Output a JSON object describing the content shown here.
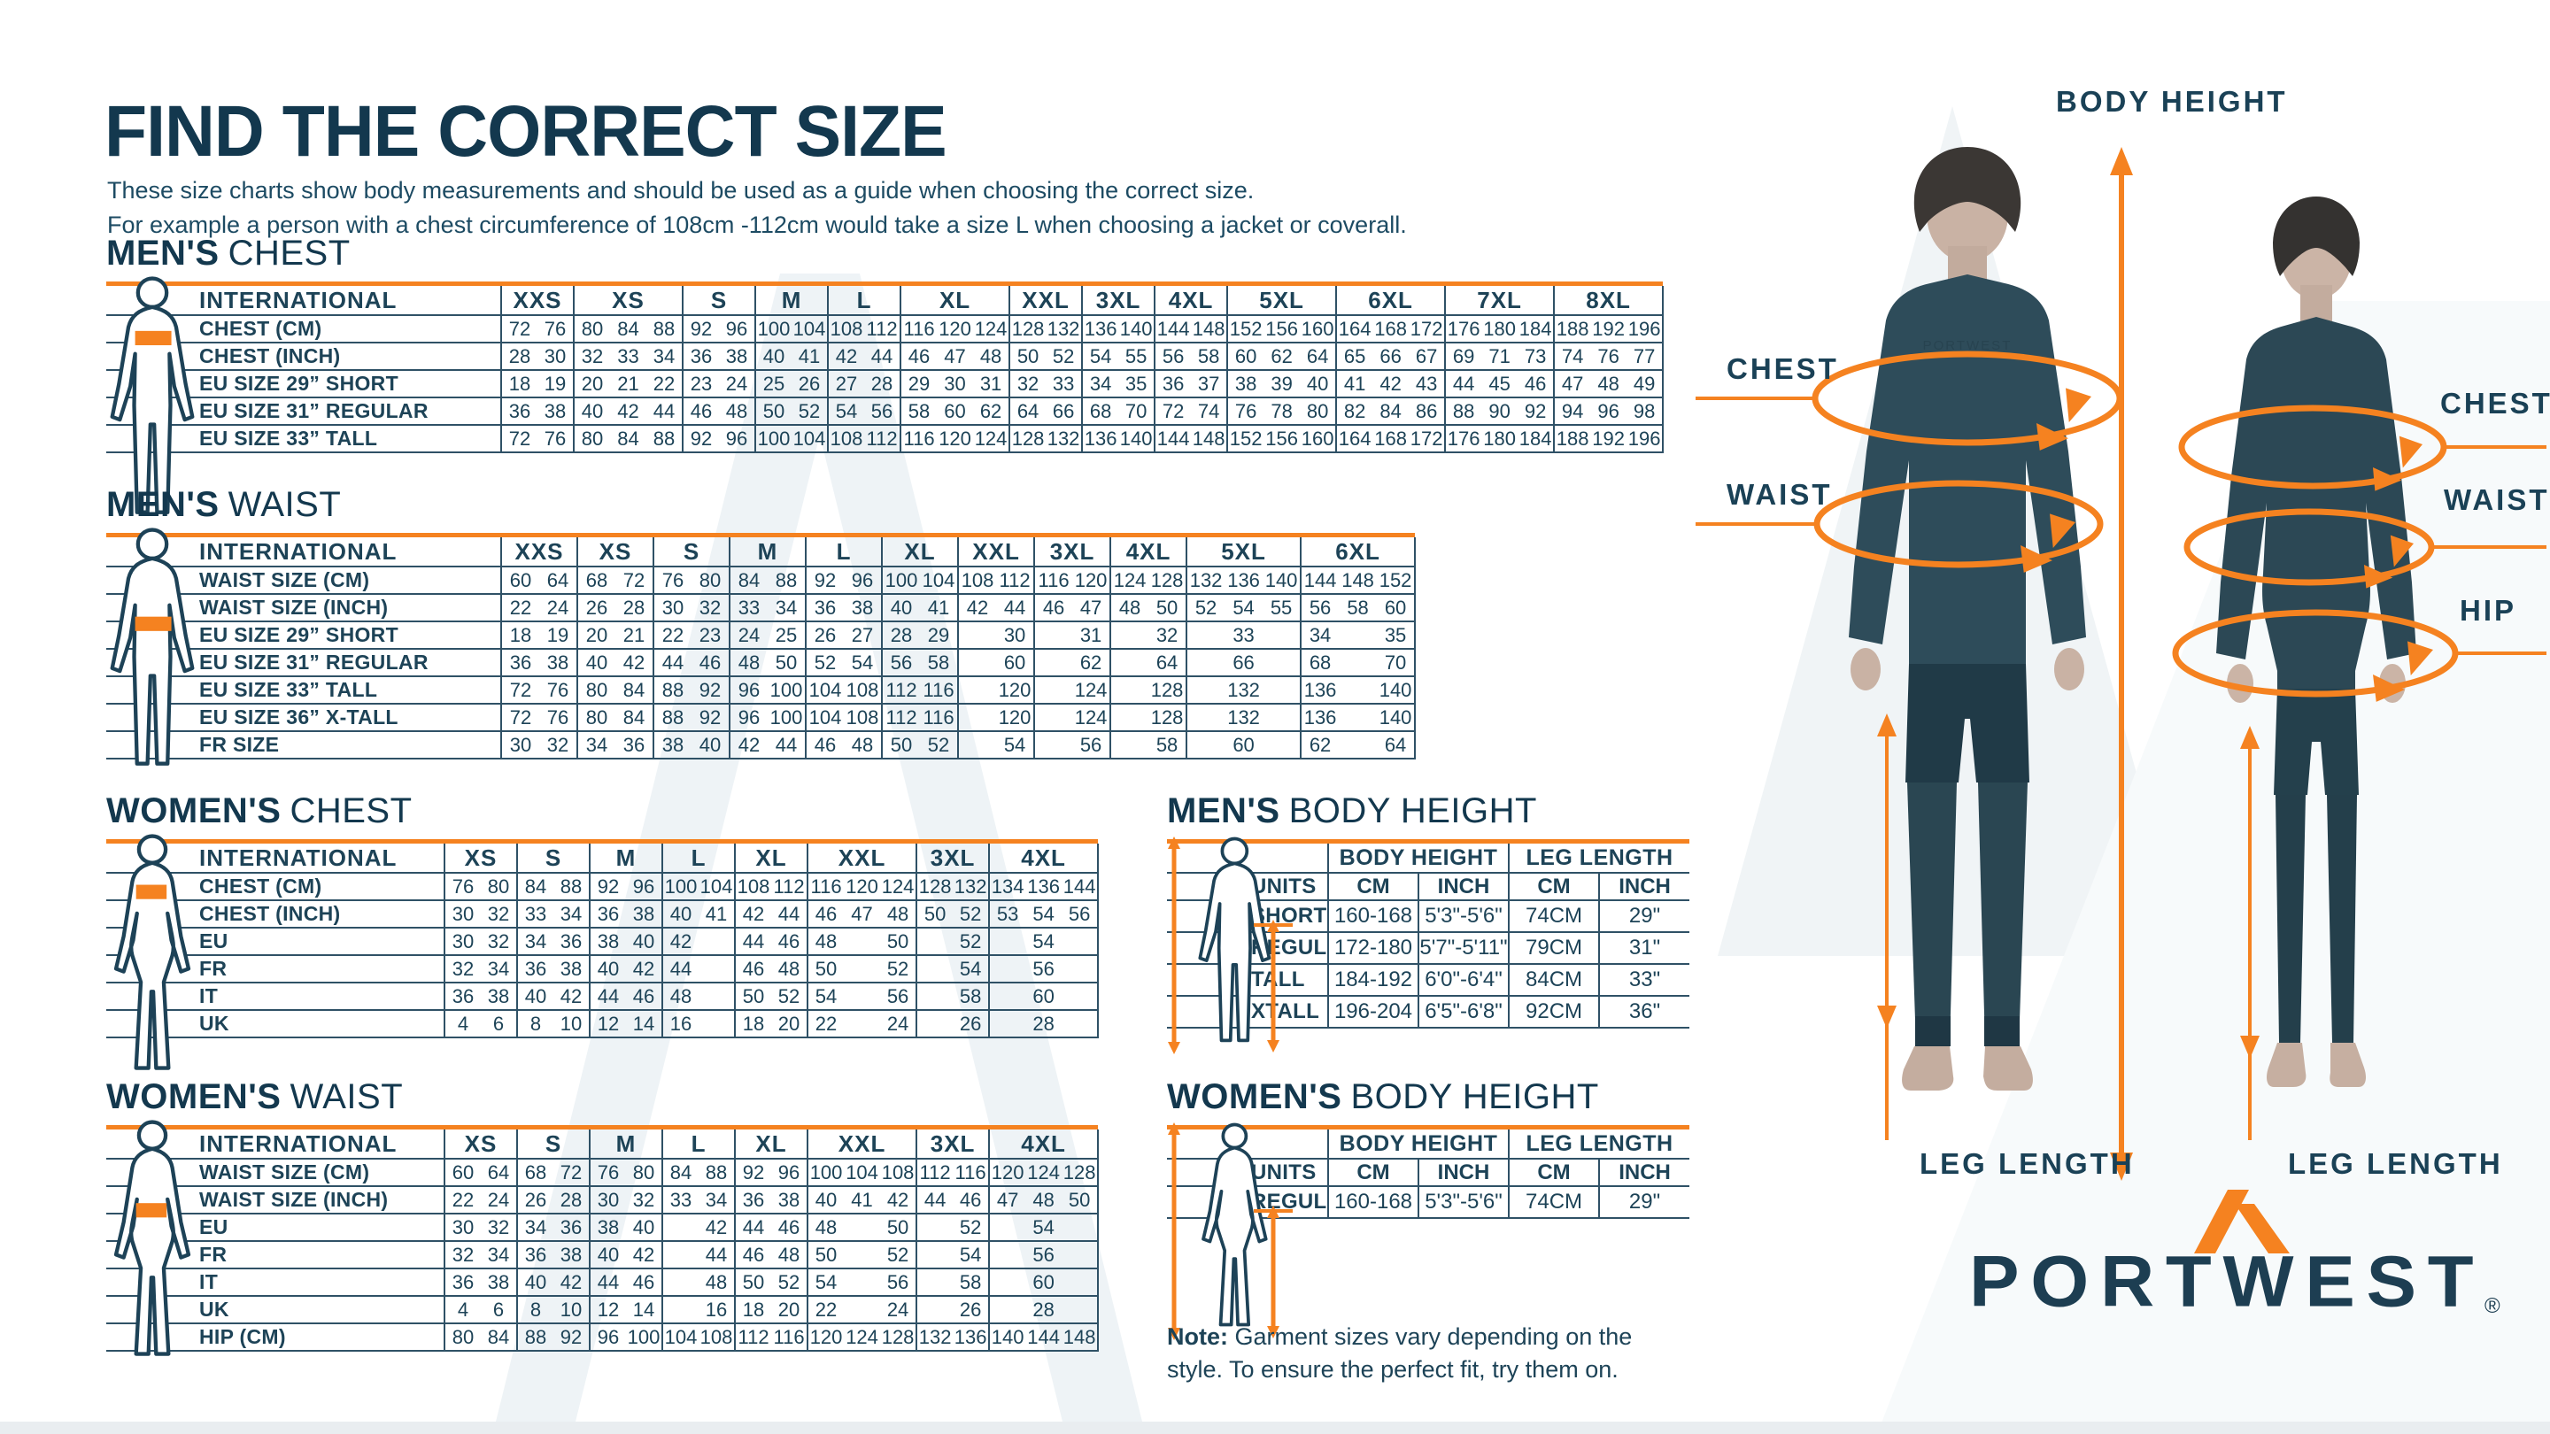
{
  "page": {
    "title": "FIND THE CORRECT SIZE",
    "subtitle1": "These size charts show body measurements and should be used as a guide when choosing the correct size.",
    "subtitle2": "For example a person with a chest circumference of 108cm -112cm would take a size L when choosing a jacket or coverall.",
    "note_bold": "Note:",
    "note_text": " Garment sizes vary depending on the style. To ensure the perfect fit, try them on.",
    "brand": "PORTWEST",
    "registered": "®"
  },
  "colors": {
    "navy": "#13384e",
    "orange": "#F58220",
    "table_line": "#2f5166",
    "skin": "#c9b2a4",
    "garment_dark": "#2e4c5a"
  },
  "size_tables": [
    {
      "id": "t-mens-chest",
      "title_bold": "MEN'S",
      "title_light": "CHEST",
      "figure": "male",
      "band": "chest",
      "label_header": "INTERNATIONAL",
      "groups": [
        [
          "XXS",
          2
        ],
        [
          "XS",
          3
        ],
        [
          "S",
          2
        ],
        [
          "M",
          2
        ],
        [
          "L",
          2
        ],
        [
          "XL",
          3
        ],
        [
          "XXL",
          2
        ],
        [
          "3XL",
          2
        ],
        [
          "4XL",
          2
        ],
        [
          "5XL",
          3
        ],
        [
          "6XL",
          3
        ],
        [
          "7XL",
          3
        ],
        [
          "8XL",
          3
        ]
      ],
      "rows": [
        [
          "CHEST (CM)",
          [
            "72",
            "76",
            "80",
            "84",
            "88",
            "92",
            "96",
            "100",
            "104",
            "108",
            "112",
            "116",
            "120",
            "124",
            "128",
            "132",
            "136",
            "140",
            "144",
            "148",
            "152",
            "156",
            "160",
            "164",
            "168",
            "172",
            "176",
            "180",
            "184",
            "188",
            "192",
            "196"
          ]
        ],
        [
          "CHEST (INCH)",
          [
            "28",
            "30",
            "32",
            "33",
            "34",
            "36",
            "38",
            "40",
            "41",
            "42",
            "44",
            "46",
            "47",
            "48",
            "50",
            "52",
            "54",
            "55",
            "56",
            "58",
            "60",
            "62",
            "64",
            "65",
            "66",
            "67",
            "69",
            "71",
            "73",
            "74",
            "76",
            "77"
          ]
        ],
        [
          "EU SIZE 29” SHORT",
          [
            "18",
            "19",
            "20",
            "21",
            "22",
            "23",
            "24",
            "25",
            "26",
            "27",
            "28",
            "29",
            "30",
            "31",
            "32",
            "33",
            "34",
            "35",
            "36",
            "37",
            "38",
            "39",
            "40",
            "41",
            "42",
            "43",
            "44",
            "45",
            "46",
            "47",
            "48",
            "49"
          ]
        ],
        [
          "EU SIZE 31” REGULAR",
          [
            "36",
            "38",
            "40",
            "42",
            "44",
            "46",
            "48",
            "50",
            "52",
            "54",
            "56",
            "58",
            "60",
            "62",
            "64",
            "66",
            "68",
            "70",
            "72",
            "74",
            "76",
            "78",
            "80",
            "82",
            "84",
            "86",
            "88",
            "90",
            "92",
            "94",
            "96",
            "98"
          ]
        ],
        [
          "EU SIZE 33” TALL",
          [
            "72",
            "76",
            "80",
            "84",
            "88",
            "92",
            "96",
            "100",
            "104",
            "108",
            "112",
            "116",
            "120",
            "124",
            "128",
            "132",
            "136",
            "140",
            "144",
            "148",
            "152",
            "156",
            "160",
            "164",
            "168",
            "172",
            "176",
            "180",
            "184",
            "188",
            "192",
            "196"
          ]
        ]
      ]
    },
    {
      "id": "t-mens-waist",
      "title_bold": "MEN'S",
      "title_light": "WAIST",
      "figure": "male",
      "band": "waist",
      "label_header": "INTERNATIONAL",
      "groups": [
        [
          "XXS",
          2
        ],
        [
          "XS",
          2
        ],
        [
          "S",
          2
        ],
        [
          "M",
          2
        ],
        [
          "L",
          2
        ],
        [
          "XL",
          2
        ],
        [
          "XXL",
          2
        ],
        [
          "3XL",
          2
        ],
        [
          "4XL",
          2
        ],
        [
          "5XL",
          3
        ],
        [
          "6XL",
          3
        ]
      ],
      "rows": [
        [
          "WAIST SIZE (CM)",
          [
            "60",
            "64",
            "68",
            "72",
            "76",
            "80",
            "84",
            "88",
            "92",
            "96",
            "100",
            "104",
            "108",
            "112",
            "116",
            "120",
            "124",
            "128",
            "132",
            "136",
            "140",
            "144",
            "148",
            "152"
          ]
        ],
        [
          "WAIST SIZE (INCH)",
          [
            "22",
            "24",
            "26",
            "28",
            "30",
            "32",
            "33",
            "34",
            "36",
            "38",
            "40",
            "41",
            "42",
            "44",
            "46",
            "47",
            "48",
            "50",
            "52",
            "54",
            "55",
            "56",
            "58",
            "60"
          ]
        ],
        [
          "EU SIZE 29” SHORT",
          [
            "18",
            "19",
            "20",
            "21",
            "22",
            "23",
            "24",
            "25",
            "26",
            "27",
            "28",
            "29",
            "",
            "30",
            "",
            "31",
            "",
            "32",
            "",
            "33",
            "",
            "34",
            "",
            "35"
          ]
        ],
        [
          "EU SIZE 31” REGULAR",
          [
            "36",
            "38",
            "40",
            "42",
            "44",
            "46",
            "48",
            "50",
            "52",
            "54",
            "56",
            "58",
            "",
            "60",
            "",
            "62",
            "",
            "64",
            "",
            "66",
            "",
            "68",
            "",
            "70"
          ]
        ],
        [
          "EU SIZE 33” TALL",
          [
            "72",
            "76",
            "80",
            "84",
            "88",
            "92",
            "96",
            "100",
            "104",
            "108",
            "112",
            "116",
            "",
            "120",
            "",
            "124",
            "",
            "128",
            "",
            "132",
            "",
            "136",
            "",
            "140"
          ]
        ],
        [
          "EU SIZE 36” X-TALL",
          [
            "72",
            "76",
            "80",
            "84",
            "88",
            "92",
            "96",
            "100",
            "104",
            "108",
            "112",
            "116",
            "",
            "120",
            "",
            "124",
            "",
            "128",
            "",
            "132",
            "",
            "136",
            "",
            "140"
          ]
        ],
        [
          "FR SIZE",
          [
            "30",
            "32",
            "34",
            "36",
            "38",
            "40",
            "42",
            "44",
            "46",
            "48",
            "50",
            "52",
            "",
            "54",
            "",
            "56",
            "",
            "58",
            "",
            "60",
            "",
            "62",
            "",
            "64"
          ]
        ]
      ]
    },
    {
      "id": "t-womens-chest",
      "title_bold": "WOMEN'S",
      "title_light": "CHEST",
      "figure": "female",
      "band": "chest",
      "label_header": "INTERNATIONAL",
      "groups": [
        [
          "XS",
          2
        ],
        [
          "S",
          2
        ],
        [
          "M",
          2
        ],
        [
          "L",
          2
        ],
        [
          "XL",
          2
        ],
        [
          "XXL",
          3
        ],
        [
          "3XL",
          2
        ],
        [
          "4XL",
          3
        ]
      ],
      "rows": [
        [
          "CHEST (CM)",
          [
            "76",
            "80",
            "84",
            "88",
            "92",
            "96",
            "100",
            "104",
            "108",
            "112",
            "116",
            "120",
            "124",
            "128",
            "132",
            "134",
            "136",
            "144"
          ]
        ],
        [
          "CHEST (INCH)",
          [
            "30",
            "32",
            "33",
            "34",
            "36",
            "38",
            "40",
            "41",
            "42",
            "44",
            "46",
            "47",
            "48",
            "50",
            "52",
            "53",
            "54",
            "56"
          ]
        ],
        [
          "EU",
          [
            "30",
            "32",
            "34",
            "36",
            "38",
            "40",
            "42",
            "",
            "44",
            "46",
            "48",
            "",
            "50",
            "",
            "52",
            [
              "54",
              3
            ]
          ]
        ],
        [
          "FR",
          [
            "32",
            "34",
            "36",
            "38",
            "40",
            "42",
            "44",
            "",
            "46",
            "48",
            "50",
            "",
            "52",
            "",
            "54",
            [
              "56",
              3
            ]
          ]
        ],
        [
          "IT",
          [
            "36",
            "38",
            "40",
            "42",
            "44",
            "46",
            "48",
            "",
            "50",
            "52",
            "54",
            "",
            "56",
            "",
            "58",
            [
              "60",
              3
            ]
          ]
        ],
        [
          "UK",
          [
            "4",
            "6",
            "8",
            "10",
            "12",
            "14",
            "16",
            "",
            "18",
            "20",
            "22",
            "",
            "24",
            "",
            "26",
            [
              "28",
              3
            ]
          ]
        ]
      ]
    },
    {
      "id": "t-womens-waist",
      "title_bold": "WOMEN'S",
      "title_light": "WAIST",
      "figure": "female",
      "band": "waist",
      "label_header": "INTERNATIONAL",
      "groups": [
        [
          "XS",
          2
        ],
        [
          "S",
          2
        ],
        [
          "M",
          2
        ],
        [
          "L",
          2
        ],
        [
          "XL",
          2
        ],
        [
          "XXL",
          3
        ],
        [
          "3XL",
          2
        ],
        [
          "4XL",
          3
        ]
      ],
      "rows": [
        [
          "WAIST SIZE (CM)",
          [
            "60",
            "64",
            "68",
            "72",
            "76",
            "80",
            "84",
            "88",
            "92",
            "96",
            "100",
            "104",
            "108",
            "112",
            "116",
            "120",
            "124",
            "128"
          ]
        ],
        [
          "WAIST SIZE (INCH)",
          [
            "22",
            "24",
            "26",
            "28",
            "30",
            "32",
            "33",
            "34",
            "36",
            "38",
            "40",
            "41",
            "42",
            "44",
            "46",
            "47",
            "48",
            "50"
          ]
        ],
        [
          "EU",
          [
            "30",
            "32",
            "34",
            "36",
            "38",
            "40",
            "",
            "42",
            "44",
            "46",
            "48",
            "",
            "50",
            "",
            "52",
            [
              "54",
              3
            ]
          ]
        ],
        [
          "FR",
          [
            "32",
            "34",
            "36",
            "38",
            "40",
            "42",
            "",
            "44",
            "46",
            "48",
            "50",
            "",
            "52",
            "",
            "54",
            [
              "56",
              3
            ]
          ]
        ],
        [
          "IT",
          [
            "36",
            "38",
            "40",
            "42",
            "44",
            "46",
            "",
            "48",
            "50",
            "52",
            "54",
            "",
            "56",
            "",
            "58",
            [
              "60",
              3
            ]
          ]
        ],
        [
          "UK",
          [
            "4",
            "6",
            "8",
            "10",
            "12",
            "14",
            "",
            "16",
            "18",
            "20",
            "22",
            "",
            "24",
            "",
            "26",
            [
              "28",
              3
            ]
          ]
        ],
        [
          "HIP (CM)",
          [
            "80",
            "84",
            "88",
            "92",
            "96",
            "100",
            "104",
            "108",
            "112",
            "116",
            "120",
            "124",
            "128",
            "132",
            "136",
            "140",
            "144",
            "148"
          ]
        ]
      ]
    }
  ],
  "height_tables": [
    {
      "id": "t-mens-bh",
      "title_bold": "MEN'S",
      "title_light": "BODY HEIGHT",
      "figure": "male",
      "col_groups": [
        [
          "BODY HEIGHT",
          2
        ],
        [
          "LEG LENGTH",
          2
        ]
      ],
      "units_label": "UNITS",
      "unit_cols": [
        "CM",
        "INCH",
        "CM",
        "INCH"
      ],
      "rows": [
        [
          "SHORT",
          [
            "160-168",
            "5'3\"-5'6\"",
            "74CM",
            "29\""
          ]
        ],
        [
          "REGULAR",
          [
            "172-180",
            "5'7\"-5'11\"",
            "79CM",
            "31\""
          ]
        ],
        [
          "TALL",
          [
            "184-192",
            "6'0\"-6'4\"",
            "84CM",
            "33\""
          ]
        ],
        [
          "XTALL",
          [
            "196-204",
            "6'5\"-6'8\"",
            "92CM",
            "36\""
          ]
        ]
      ]
    },
    {
      "id": "t-womens-bh",
      "title_bold": "WOMEN'S",
      "title_light": "BODY HEIGHT",
      "figure": "female",
      "col_groups": [
        [
          "BODY HEIGHT",
          2
        ],
        [
          "LEG LENGTH",
          2
        ]
      ],
      "units_label": "UNITS",
      "unit_cols": [
        "CM",
        "INCH",
        "CM",
        "INCH"
      ],
      "rows": [
        [
          "REGULAR",
          [
            "160-168",
            "5'3\"-5'6\"",
            "74CM",
            "29\""
          ]
        ]
      ]
    }
  ],
  "annotations": {
    "labels": [
      {
        "id": "body-height",
        "text": "BODY HEIGHT"
      },
      {
        "id": "chest-left",
        "text": "CHEST"
      },
      {
        "id": "waist-left",
        "text": "WAIST"
      },
      {
        "id": "chest-right",
        "text": "CHEST"
      },
      {
        "id": "waist-right",
        "text": "WAIST"
      },
      {
        "id": "hip-right",
        "text": "HIP"
      },
      {
        "id": "leg-length-left",
        "text": "LEG LENGTH"
      },
      {
        "id": "leg-length-right",
        "text": "LEG LENGTH"
      }
    ],
    "garment_logo": "PORTWEST"
  }
}
